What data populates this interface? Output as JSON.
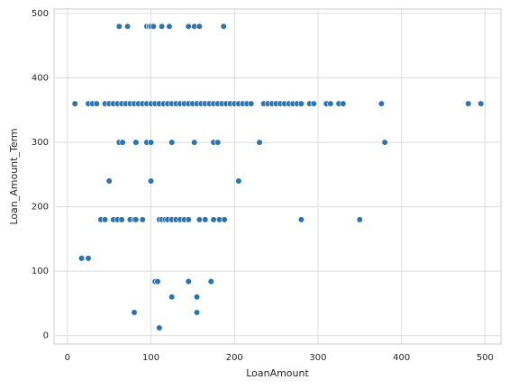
{
  "chart_data": {
    "type": "scatter",
    "x_label": "LoanAmount",
    "y_label": "Loan_Amount_Term",
    "color": "#2a74b0",
    "grid": true,
    "xlim": [
      -16,
      519
    ],
    "ylim": [
      -13,
      507
    ],
    "xticks": [
      0,
      100,
      200,
      300,
      400,
      500
    ],
    "yticks": [
      0,
      100,
      200,
      300,
      400,
      500
    ],
    "x": [
      62,
      72,
      95,
      98,
      100,
      103,
      113,
      122,
      145,
      152,
      158,
      187,
      9,
      25,
      30,
      35,
      45,
      50,
      55,
      60,
      65,
      70,
      75,
      80,
      85,
      90,
      95,
      100,
      105,
      110,
      115,
      120,
      125,
      130,
      135,
      140,
      145,
      150,
      155,
      160,
      165,
      170,
      175,
      180,
      185,
      190,
      195,
      200,
      205,
      210,
      215,
      220,
      235,
      240,
      245,
      250,
      255,
      260,
      265,
      270,
      275,
      280,
      290,
      295,
      310,
      315,
      325,
      330,
      376,
      480,
      495,
      62,
      66,
      82,
      95,
      100,
      125,
      152,
      175,
      180,
      230,
      380,
      50,
      100,
      205,
      40,
      45,
      55,
      60,
      65,
      75,
      80,
      82,
      90,
      110,
      113,
      117,
      120,
      125,
      130,
      135,
      140,
      145,
      158,
      165,
      175,
      182,
      188,
      280,
      350,
      17,
      25,
      105,
      108,
      145,
      172,
      125,
      155,
      80,
      155,
      110
    ],
    "values": [
      480,
      480,
      480,
      480,
      480,
      480,
      480,
      480,
      480,
      480,
      480,
      480,
      360,
      360,
      360,
      360,
      360,
      360,
      360,
      360,
      360,
      360,
      360,
      360,
      360,
      360,
      360,
      360,
      360,
      360,
      360,
      360,
      360,
      360,
      360,
      360,
      360,
      360,
      360,
      360,
      360,
      360,
      360,
      360,
      360,
      360,
      360,
      360,
      360,
      360,
      360,
      360,
      360,
      360,
      360,
      360,
      360,
      360,
      360,
      360,
      360,
      360,
      360,
      360,
      360,
      360,
      360,
      360,
      360,
      360,
      360,
      300,
      300,
      300,
      300,
      300,
      300,
      300,
      300,
      300,
      300,
      300,
      240,
      240,
      240,
      180,
      180,
      180,
      180,
      180,
      180,
      180,
      180,
      180,
      180,
      180,
      180,
      180,
      180,
      180,
      180,
      180,
      180,
      180,
      180,
      180,
      180,
      180,
      180,
      180,
      120,
      120,
      84,
      84,
      84,
      84,
      60,
      60,
      36,
      36,
      12
    ]
  }
}
